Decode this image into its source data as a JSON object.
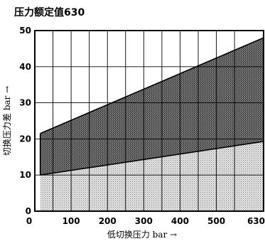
{
  "chart_data": {
    "type": "area",
    "title": "压力额定值630",
    "xlabel": "低切换压力 bar →",
    "ylabel": "切换压力差 bar →",
    "xlim": [
      0,
      630
    ],
    "ylim": [
      0,
      50
    ],
    "x_ticks": [
      {
        "value": 0,
        "label": "0"
      },
      {
        "value": 100,
        "label": "100"
      },
      {
        "value": 200,
        "label": "200"
      },
      {
        "value": 300,
        "label": "300"
      },
      {
        "value": 400,
        "label": "400"
      },
      {
        "value": 500,
        "label": "500"
      },
      {
        "value": 630,
        "label": "630"
      }
    ],
    "y_ticks": [
      {
        "value": 0,
        "label": "0"
      },
      {
        "value": 10,
        "label": "10"
      },
      {
        "value": 20,
        "label": "20"
      },
      {
        "value": 30,
        "label": "30"
      },
      {
        "value": 40,
        "label": "40"
      },
      {
        "value": 50,
        "label": "50"
      }
    ],
    "grid": true,
    "x_grid_values": [
      0,
      50,
      100,
      150,
      200,
      250,
      300,
      350,
      400,
      450,
      500,
      550,
      630
    ],
    "y_grid_values": [
      0,
      10,
      20,
      30,
      40,
      50
    ],
    "series": [
      {
        "x": [
          15,
          630
        ],
        "y": [
          10,
          19.3
        ],
        "color": "#d0d0d0"
      },
      {
        "x": [
          15,
          630
        ],
        "y": [
          21.5,
          48
        ],
        "color": "#5a5a5a"
      }
    ]
  }
}
